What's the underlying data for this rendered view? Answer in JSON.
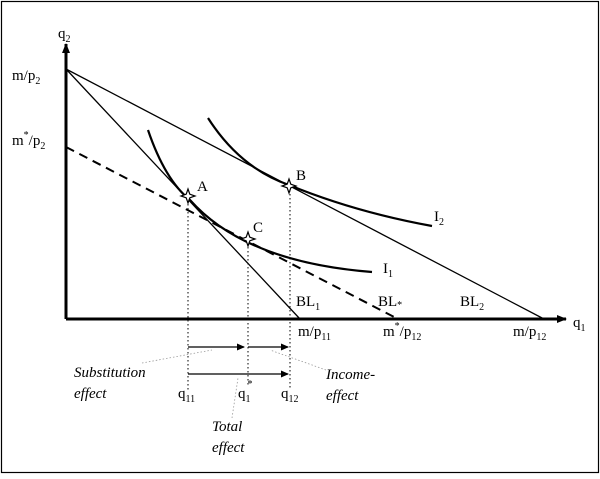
{
  "axes": {
    "y_label": {
      "base": "q",
      "sub": "2"
    },
    "x_label": {
      "base": "q",
      "sub": "1"
    }
  },
  "intercepts": {
    "y_top": {
      "base": "m/p",
      "sub": "2"
    },
    "y_star": {
      "base": "m",
      "sup": "*",
      "mid": "/p",
      "sub": "2"
    },
    "x_11": {
      "base": "m/p",
      "sub": "11"
    },
    "x_12_star": {
      "base": "m",
      "sup": "*",
      "mid": "/p",
      "sub": "12"
    },
    "x_12": {
      "base": "m/p",
      "sub": "12"
    }
  },
  "points": {
    "A": "A",
    "B": "B",
    "C": "C"
  },
  "curves": {
    "I1": {
      "base": "I",
      "sub": "1"
    },
    "I2": {
      "base": "I",
      "sub": "2"
    }
  },
  "budget_lines": {
    "BL1": {
      "base": "BL",
      "sub": "1"
    },
    "BLstar": {
      "base": "BL",
      "sub": "*"
    },
    "BL2": {
      "base": "BL",
      "sub": "2"
    }
  },
  "quantities": {
    "q11": {
      "base": "q",
      "sub": "11"
    },
    "q1star": {
      "base": "q",
      "sub": "1",
      "sup": "*"
    },
    "q12": {
      "base": "q",
      "sub": "12"
    }
  },
  "effects": {
    "substitution_line1": "Substitution",
    "substitution_line2": "effect",
    "income_line1": "Income-",
    "income_line2": "effect",
    "total_line1": "Total",
    "total_line2": "effect"
  }
}
